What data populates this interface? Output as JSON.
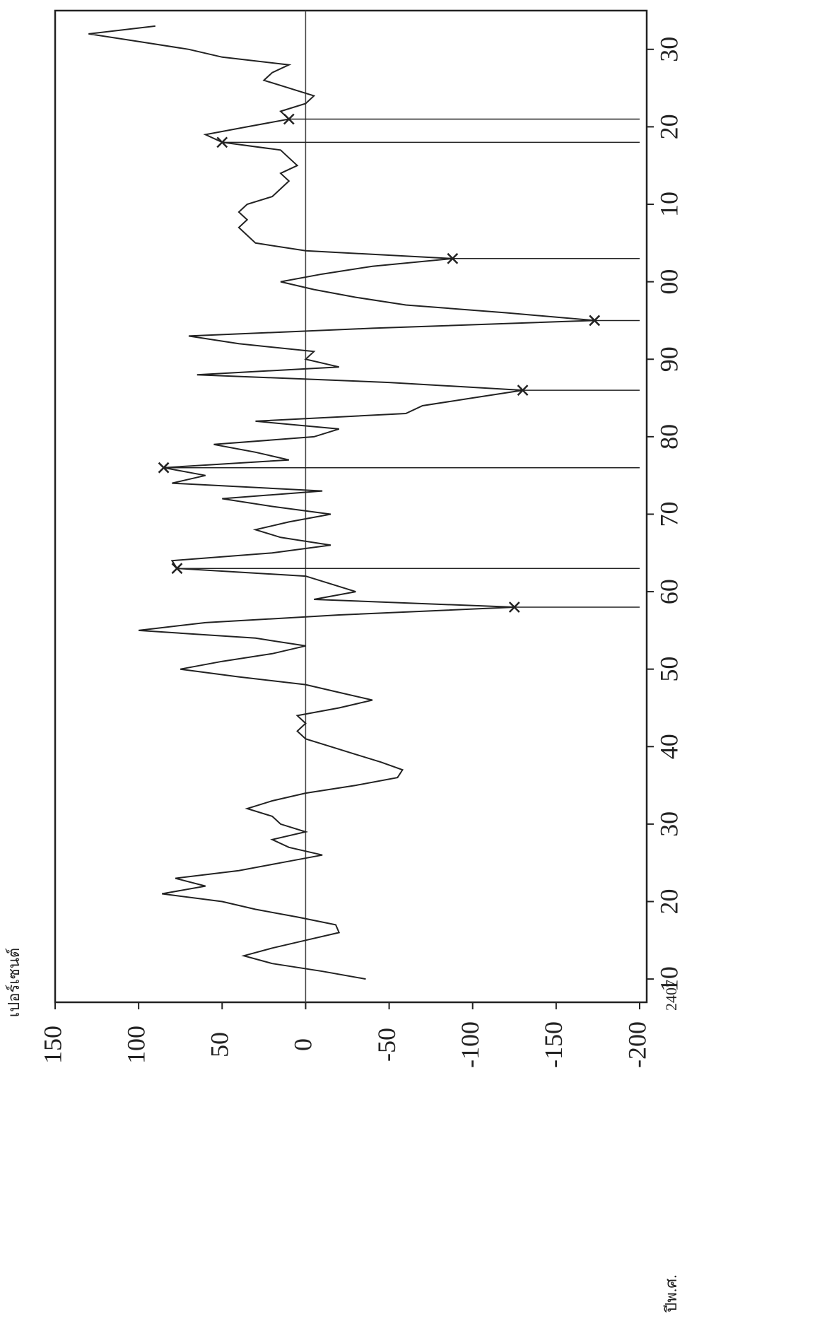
{
  "chart_data": {
    "type": "line",
    "y_label": "เปอร์เซนต์",
    "x_label": "ปีพ.ศ.",
    "x": [
      2410,
      2411,
      2412,
      2413,
      2414,
      2415,
      2416,
      2417,
      2418,
      2419,
      2420,
      2421,
      2422,
      2423,
      2424,
      2425,
      2426,
      2427,
      2428,
      2429,
      2430,
      2431,
      2432,
      2433,
      2434,
      2435,
      2436,
      2437,
      2438,
      2439,
      2440,
      2441,
      2442,
      2443,
      2444,
      2445,
      2446,
      2447,
      2448,
      2449,
      2450,
      2451,
      2452,
      2453,
      2454,
      2455,
      2456,
      2457,
      2458,
      2459,
      2460,
      2461,
      2462,
      2463,
      2464,
      2465,
      2466,
      2467,
      2468,
      2469,
      2470,
      2471,
      2472,
      2473,
      2474,
      2475,
      2476,
      2477,
      2478,
      2479,
      2480,
      2481,
      2482,
      2483,
      2484,
      2485,
      2486,
      2487,
      2488,
      2489,
      2490,
      2491,
      2492,
      2493,
      2494,
      2495,
      2496,
      2497,
      2498,
      2499,
      2500,
      2501,
      2502,
      2503,
      2504,
      2505,
      2506,
      2507,
      2508,
      2509,
      2510,
      2511,
      2512,
      2513,
      2514,
      2515,
      2516,
      2517,
      2518,
      2519,
      2520,
      2521,
      2522,
      2523,
      2524,
      2525,
      2526,
      2527,
      2528,
      2529,
      2530,
      2531,
      2532,
      2533
    ],
    "values": [
      -36,
      -10,
      20,
      37,
      20,
      0,
      -20,
      -18,
      5,
      30,
      50,
      86,
      60,
      78,
      40,
      15,
      -10,
      10,
      20,
      0,
      15,
      20,
      35,
      20,
      0,
      -30,
      -55,
      -58,
      -45,
      -30,
      -15,
      0,
      5,
      0,
      5,
      -20,
      -40,
      -20,
      0,
      40,
      75,
      50,
      20,
      0,
      30,
      100,
      60,
      -20,
      -125,
      -5,
      -30,
      -15,
      0,
      77,
      80,
      20,
      -15,
      15,
      30,
      10,
      -15,
      20,
      50,
      -10,
      80,
      60,
      85,
      10,
      30,
      55,
      -5,
      -20,
      30,
      -60,
      -70,
      -100,
      -130,
      -50,
      65,
      -20,
      0,
      -5,
      40,
      70,
      -40,
      -173,
      -120,
      -60,
      -30,
      -5,
      15,
      -10,
      -40,
      -88,
      0,
      30,
      35,
      40,
      35,
      40,
      35,
      20,
      15,
      10,
      15,
      5,
      10,
      15,
      50,
      60,
      35,
      10,
      15,
      0,
      -5,
      10,
      25,
      20,
      10,
      50,
      70,
      100,
      130,
      90
    ],
    "color": "#222222",
    "markers": [
      2458,
      2463,
      2476,
      2486,
      2495,
      2503,
      2518,
      2521
    ],
    "xlim": [
      2407,
      2535
    ],
    "xticks": [
      2407,
      {
        "value": 2410,
        "label": "10"
      },
      {
        "value": 2420,
        "label": "20"
      },
      {
        "value": 2430,
        "label": "30"
      },
      {
        "value": 2440,
        "label": "40"
      },
      {
        "value": 2450,
        "label": "50"
      },
      {
        "value": 2460,
        "label": "60"
      },
      {
        "value": 2470,
        "label": "70"
      },
      {
        "value": 2480,
        "label": "80"
      },
      {
        "value": 2490,
        "label": "90"
      },
      {
        "value": 2500,
        "label": "00"
      },
      {
        "value": 2510,
        "label": "10"
      },
      {
        "value": 2520,
        "label": "20"
      },
      {
        "value": 2530,
        "label": "30"
      }
    ],
    "ylim": [
      150,
      -200
    ],
    "yticks": [
      150,
      100,
      50,
      0,
      -50,
      -100,
      -150,
      -200
    ],
    "zero_line": true
  }
}
